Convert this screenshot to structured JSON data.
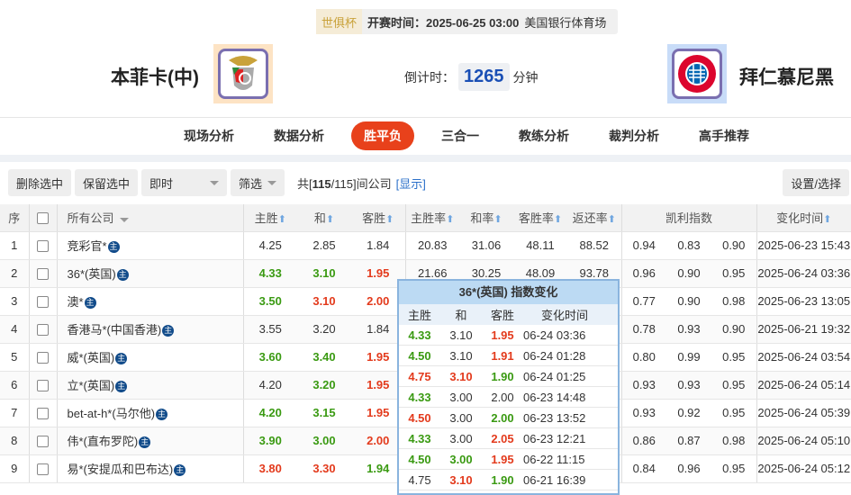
{
  "match": {
    "cup": "世俱杯",
    "start_time": "开赛时间：2025-06-25 03:00",
    "venue": "美国银行体育场",
    "home": "本菲卡(中)",
    "away": "拜仁慕尼黑",
    "countdown_label": "倒计时：",
    "countdown_value": "1265",
    "countdown_unit": "分钟"
  },
  "nav": [
    "现场分析",
    "数据分析",
    "胜平负",
    "三合一",
    "教练分析",
    "裁判分析",
    "高手推荐"
  ],
  "nav_active": 2,
  "toolbar": {
    "delete": "删除选中",
    "keep": "保留选中",
    "mode": "即时",
    "filter": "筛选",
    "count_prefix": "共[",
    "count": "115",
    "count_total": "/115]间公司",
    "show": "[显示]",
    "settings": "设置/选择"
  },
  "table": {
    "headers": {
      "no": "序",
      "company": "所有公司",
      "home": "主胜",
      "draw": "和",
      "away": "客胜",
      "home_rate": "主胜率",
      "draw_rate": "和率",
      "away_rate": "客胜率",
      "return": "返还率",
      "kelly": "凯利指数",
      "time": "变化时间"
    },
    "badge": "主",
    "rows": [
      {
        "no": "1",
        "company": "竞彩官*",
        "odds": [
          [
            "4.25",
            ""
          ],
          [
            "2.85",
            ""
          ],
          [
            "1.84",
            ""
          ]
        ],
        "rates": [
          "20.83",
          "31.06",
          "48.11",
          "88.52"
        ],
        "kelly": [
          "0.94",
          "0.83",
          "0.90"
        ],
        "time": "2025-06-23 15:43"
      },
      {
        "no": "2",
        "company": "36*(英国)",
        "odds": [
          [
            "4.33",
            "g"
          ],
          [
            "3.10",
            "g"
          ],
          [
            "1.95",
            "r"
          ]
        ],
        "rates": [
          "21.66",
          "30.25",
          "48.09",
          "93.78"
        ],
        "kelly": [
          "0.96",
          "0.90",
          "0.95"
        ],
        "time": "2025-06-24 03:36"
      },
      {
        "no": "3",
        "company": "澳*",
        "odds": [
          [
            "3.50",
            "g"
          ],
          [
            "3.10",
            "r"
          ],
          [
            "2.00",
            "r"
          ]
        ],
        "rates": [
          "",
          "",
          "",
          ""
        ],
        "kelly": [
          "0.77",
          "0.90",
          "0.98"
        ],
        "time": "2025-06-23 13:05"
      },
      {
        "no": "4",
        "company": "香港马*(中国香港)",
        "odds": [
          [
            "3.55",
            ""
          ],
          [
            "3.20",
            ""
          ],
          [
            "1.84",
            ""
          ]
        ],
        "rates": [
          "",
          "",
          "",
          ""
        ],
        "kelly": [
          "0.78",
          "0.93",
          "0.90"
        ],
        "time": "2025-06-21 19:32"
      },
      {
        "no": "5",
        "company": "威*(英国)",
        "odds": [
          [
            "3.60",
            "g"
          ],
          [
            "3.40",
            "g"
          ],
          [
            "1.95",
            "r"
          ]
        ],
        "rates": [
          "",
          "",
          "",
          ""
        ],
        "kelly": [
          "0.80",
          "0.99",
          "0.95"
        ],
        "time": "2025-06-24 03:54"
      },
      {
        "no": "6",
        "company": "立*(英国)",
        "odds": [
          [
            "4.20",
            ""
          ],
          [
            "3.20",
            "g"
          ],
          [
            "1.95",
            "r"
          ]
        ],
        "rates": [
          "",
          "",
          "",
          ""
        ],
        "kelly": [
          "0.93",
          "0.93",
          "0.95"
        ],
        "time": "2025-06-24 05:14"
      },
      {
        "no": "7",
        "company": "bet-at-h*(马尔他)",
        "odds": [
          [
            "4.20",
            "g"
          ],
          [
            "3.15",
            "g"
          ],
          [
            "1.95",
            "r"
          ]
        ],
        "rates": [
          "",
          "",
          "",
          ""
        ],
        "kelly": [
          "0.93",
          "0.92",
          "0.95"
        ],
        "time": "2025-06-24 05:39"
      },
      {
        "no": "8",
        "company": "伟*(直布罗陀)",
        "odds": [
          [
            "3.90",
            "g"
          ],
          [
            "3.00",
            "g"
          ],
          [
            "2.00",
            "r"
          ]
        ],
        "rates": [
          "",
          "",
          "",
          ""
        ],
        "kelly": [
          "0.86",
          "0.87",
          "0.98"
        ],
        "time": "2025-06-24 05:10"
      },
      {
        "no": "9",
        "company": "易*(安提瓜和巴布达)",
        "odds": [
          [
            "3.80",
            "r"
          ],
          [
            "3.30",
            "r"
          ],
          [
            "1.94",
            "g"
          ]
        ],
        "rates": [
          "",
          "",
          "",
          ""
        ],
        "kelly": [
          "0.84",
          "0.96",
          "0.95"
        ],
        "time": "2025-06-24 05:12"
      }
    ]
  },
  "popup": {
    "title": "36*(英国) 指数变化",
    "headers": [
      "主胜",
      "和",
      "客胜",
      "变化时间"
    ],
    "rows": [
      [
        [
          "4.33",
          "g"
        ],
        [
          "3.10",
          ""
        ],
        [
          "1.95",
          "r"
        ],
        "06-24 03:36"
      ],
      [
        [
          "4.50",
          "g"
        ],
        [
          "3.10",
          ""
        ],
        [
          "1.91",
          "r"
        ],
        "06-24 01:28"
      ],
      [
        [
          "4.75",
          "r"
        ],
        [
          "3.10",
          "r"
        ],
        [
          "1.90",
          "g"
        ],
        "06-24 01:25"
      ],
      [
        [
          "4.33",
          "g"
        ],
        [
          "3.00",
          ""
        ],
        [
          "2.00",
          ""
        ],
        "06-23 14:48"
      ],
      [
        [
          "4.50",
          "r"
        ],
        [
          "3.00",
          ""
        ],
        [
          "2.00",
          "g"
        ],
        "06-23 13:52"
      ],
      [
        [
          "4.33",
          "g"
        ],
        [
          "3.00",
          ""
        ],
        [
          "2.05",
          "r"
        ],
        "06-23 12:21"
      ],
      [
        [
          "4.50",
          "g"
        ],
        [
          "3.00",
          "g"
        ],
        [
          "1.95",
          "r"
        ],
        "06-22 11:15"
      ],
      [
        [
          "4.75",
          ""
        ],
        [
          "3.10",
          "r"
        ],
        [
          "1.90",
          "g"
        ],
        "06-21 16:39"
      ]
    ]
  },
  "colors": {
    "up": "#e33a1c",
    "down": "#3a9a12",
    "accent": "#e8411b",
    "link": "#2a6fc9"
  }
}
